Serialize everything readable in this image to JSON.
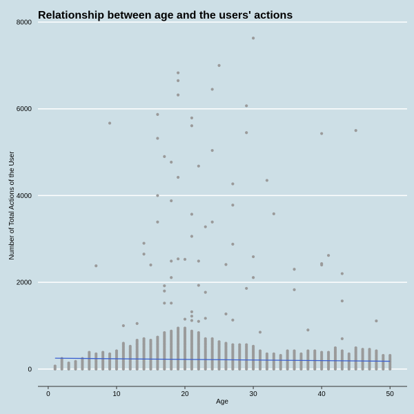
{
  "chart_data": {
    "type": "scatter",
    "title": "Relationship between age and the users' actions",
    "xlabel": "Age",
    "ylabel": "Number of Total Actions of the User",
    "xlim": [
      -1.5,
      52.5
    ],
    "ylim": [
      -400,
      8000
    ],
    "x_ticks": [
      0,
      10,
      20,
      30,
      40,
      50
    ],
    "y_ticks": [
      0,
      2000,
      4000,
      6000,
      8000
    ],
    "grid": "horizontal major lines only",
    "colors": {
      "background": "#cddfe6",
      "points": "#9a9a9a",
      "trend": "#3a5fd0",
      "grid": "#ffffff",
      "axis": "#333333"
    },
    "trend_line": {
      "x": [
        1,
        50
      ],
      "y": [
        250,
        180
      ]
    },
    "dense_columns": [
      {
        "x": 1,
        "max": 100
      },
      {
        "x": 2,
        "max": 260
      },
      {
        "x": 3,
        "max": 150
      },
      {
        "x": 4,
        "max": 200
      },
      {
        "x": 5,
        "max": 250
      },
      {
        "x": 6,
        "max": 400
      },
      {
        "x": 7,
        "max": 380
      },
      {
        "x": 8,
        "max": 400
      },
      {
        "x": 9,
        "max": 380
      },
      {
        "x": 10,
        "max": 420
      },
      {
        "x": 11,
        "max": 600
      },
      {
        "x": 12,
        "max": 550
      },
      {
        "x": 13,
        "max": 680
      },
      {
        "x": 14,
        "max": 700
      },
      {
        "x": 15,
        "max": 680
      },
      {
        "x": 16,
        "max": 750
      },
      {
        "x": 17,
        "max": 850
      },
      {
        "x": 18,
        "max": 900
      },
      {
        "x": 19,
        "max": 950
      },
      {
        "x": 20,
        "max": 960
      },
      {
        "x": 21,
        "max": 900
      },
      {
        "x": 22,
        "max": 850
      },
      {
        "x": 23,
        "max": 700
      },
      {
        "x": 24,
        "max": 700
      },
      {
        "x": 25,
        "max": 650
      },
      {
        "x": 26,
        "max": 600
      },
      {
        "x": 27,
        "max": 580
      },
      {
        "x": 28,
        "max": 560
      },
      {
        "x": 29,
        "max": 560
      },
      {
        "x": 30,
        "max": 550
      },
      {
        "x": 31,
        "max": 420
      },
      {
        "x": 32,
        "max": 380
      },
      {
        "x": 33,
        "max": 350
      },
      {
        "x": 34,
        "max": 320
      },
      {
        "x": 35,
        "max": 450
      },
      {
        "x": 36,
        "max": 450
      },
      {
        "x": 37,
        "max": 350
      },
      {
        "x": 38,
        "max": 420
      },
      {
        "x": 39,
        "max": 430
      },
      {
        "x": 40,
        "max": 400
      },
      {
        "x": 41,
        "max": 400
      },
      {
        "x": 42,
        "max": 520
      },
      {
        "x": 43,
        "max": 450
      },
      {
        "x": 44,
        "max": 380
      },
      {
        "x": 45,
        "max": 520
      },
      {
        "x": 46,
        "max": 480
      },
      {
        "x": 47,
        "max": 470
      },
      {
        "x": 48,
        "max": 450
      },
      {
        "x": 49,
        "max": 330
      },
      {
        "x": 50,
        "max": 330
      }
    ],
    "outliers": [
      {
        "x": 7,
        "y": 2380
      },
      {
        "x": 9,
        "y": 5670
      },
      {
        "x": 11,
        "y": 1000
      },
      {
        "x": 13,
        "y": 1050
      },
      {
        "x": 14,
        "y": 2900
      },
      {
        "x": 14,
        "y": 2650
      },
      {
        "x": 15,
        "y": 2400
      },
      {
        "x": 16,
        "y": 5870
      },
      {
        "x": 16,
        "y": 5320
      },
      {
        "x": 16,
        "y": 4000
      },
      {
        "x": 16,
        "y": 3390
      },
      {
        "x": 17,
        "y": 4900
      },
      {
        "x": 17,
        "y": 1920
      },
      {
        "x": 17,
        "y": 1800
      },
      {
        "x": 17,
        "y": 1520
      },
      {
        "x": 18,
        "y": 4770
      },
      {
        "x": 18,
        "y": 3880
      },
      {
        "x": 18,
        "y": 2490
      },
      {
        "x": 18,
        "y": 2110
      },
      {
        "x": 18,
        "y": 1520
      },
      {
        "x": 19,
        "y": 6830
      },
      {
        "x": 19,
        "y": 6650
      },
      {
        "x": 19,
        "y": 6320
      },
      {
        "x": 19,
        "y": 4420
      },
      {
        "x": 19,
        "y": 2540
      },
      {
        "x": 20,
        "y": 2530
      },
      {
        "x": 20,
        "y": 1150
      },
      {
        "x": 21,
        "y": 5790
      },
      {
        "x": 21,
        "y": 5610
      },
      {
        "x": 21,
        "y": 3570
      },
      {
        "x": 21,
        "y": 3060
      },
      {
        "x": 21,
        "y": 1320
      },
      {
        "x": 21,
        "y": 1220
      },
      {
        "x": 21,
        "y": 1120
      },
      {
        "x": 22,
        "y": 4680
      },
      {
        "x": 22,
        "y": 2490
      },
      {
        "x": 22,
        "y": 1930
      },
      {
        "x": 22,
        "y": 1100
      },
      {
        "x": 23,
        "y": 3280
      },
      {
        "x": 23,
        "y": 1770
      },
      {
        "x": 23,
        "y": 1170
      },
      {
        "x": 24,
        "y": 6450
      },
      {
        "x": 24,
        "y": 5040
      },
      {
        "x": 24,
        "y": 3390
      },
      {
        "x": 25,
        "y": 7000
      },
      {
        "x": 26,
        "y": 2410
      },
      {
        "x": 26,
        "y": 1270
      },
      {
        "x": 27,
        "y": 4270
      },
      {
        "x": 27,
        "y": 3780
      },
      {
        "x": 27,
        "y": 2880
      },
      {
        "x": 27,
        "y": 1130
      },
      {
        "x": 29,
        "y": 6070
      },
      {
        "x": 29,
        "y": 5450
      },
      {
        "x": 29,
        "y": 1860
      },
      {
        "x": 30,
        "y": 7630
      },
      {
        "x": 30,
        "y": 2590
      },
      {
        "x": 30,
        "y": 2110
      },
      {
        "x": 31,
        "y": 850
      },
      {
        "x": 32,
        "y": 4350
      },
      {
        "x": 33,
        "y": 3580
      },
      {
        "x": 36,
        "y": 2300
      },
      {
        "x": 36,
        "y": 1830
      },
      {
        "x": 38,
        "y": 900
      },
      {
        "x": 40,
        "y": 5430
      },
      {
        "x": 40,
        "y": 2430
      },
      {
        "x": 40,
        "y": 2400
      },
      {
        "x": 41,
        "y": 2620
      },
      {
        "x": 43,
        "y": 2200
      },
      {
        "x": 43,
        "y": 1570
      },
      {
        "x": 43,
        "y": 700
      },
      {
        "x": 45,
        "y": 5500
      },
      {
        "x": 48,
        "y": 1110
      }
    ]
  }
}
